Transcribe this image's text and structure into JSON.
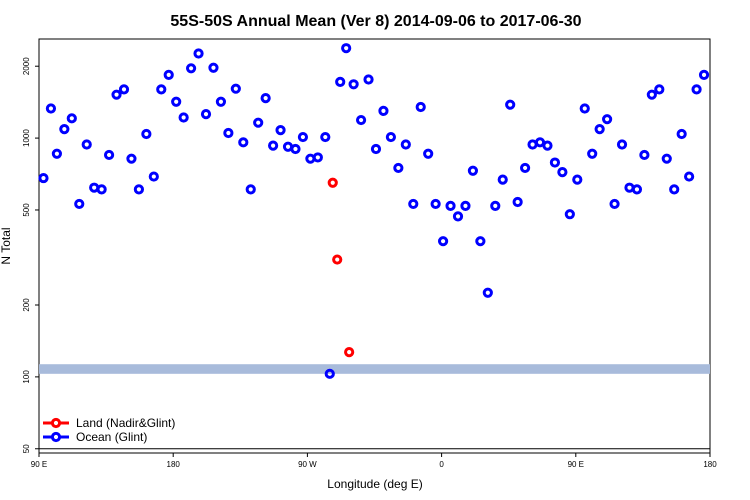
{
  "chart_data": {
    "type": "scatter",
    "title": "55S-50S Annual Mean (Ver 8)   2014-09-06 to 2017-06-30",
    "xlabel": "Longitude (deg E)",
    "ylabel": "N Total",
    "x_ticks": [
      {
        "value": 90,
        "label": "90 E"
      },
      {
        "value": 180,
        "label": "180"
      },
      {
        "value": 270,
        "label": "90 W"
      },
      {
        "value": 360,
        "label": "0"
      },
      {
        "value": 450,
        "label": "90 E"
      },
      {
        "value": 540,
        "label": "180"
      }
    ],
    "y_ticks": [
      {
        "value": 50,
        "label": "50"
      },
      {
        "value": 100,
        "label": "100"
      },
      {
        "value": 200,
        "label": "200"
      },
      {
        "value": 500,
        "label": "500"
      },
      {
        "value": 1000,
        "label": "1000"
      },
      {
        "value": 2000,
        "label": "2000"
      }
    ],
    "xlim": [
      90,
      540
    ],
    "ylim": [
      48,
      2600
    ],
    "y_scale": "log",
    "grid": false,
    "legend_position": "bottom-left",
    "band": {
      "y_low": 103,
      "y_high": 113,
      "color": "#a8bbdb"
    },
    "baseline_y": 50,
    "series": [
      {
        "name": "Land (Nadir&Glint)",
        "color": "#ff0000",
        "x": [
          287,
          290,
          298
        ],
        "y": [
          650,
          310,
          127
        ]
      },
      {
        "name": "Ocean (Glint)",
        "color": "#0000ff",
        "x": [
          93,
          98,
          102,
          107,
          112,
          117,
          122,
          127,
          132,
          137,
          142,
          147,
          152,
          157,
          162,
          167,
          172,
          177,
          182,
          187,
          192,
          197,
          202,
          207,
          212,
          217,
          222,
          227,
          232,
          237,
          242,
          247,
          252,
          257,
          262,
          267,
          272,
          277,
          282,
          285,
          292,
          296,
          301,
          306,
          311,
          316,
          321,
          326,
          331,
          336,
          341,
          346,
          351,
          356,
          361,
          366,
          371,
          376,
          381,
          386,
          391,
          396,
          401,
          406,
          411,
          416,
          421,
          426,
          431,
          436,
          441,
          446,
          451,
          456,
          461,
          466,
          471,
          476,
          481,
          486,
          491,
          496,
          501,
          506,
          511,
          516,
          521,
          526,
          531,
          536
        ],
        "y": [
          680,
          1330,
          860,
          1090,
          1210,
          530,
          940,
          620,
          610,
          850,
          1520,
          1600,
          820,
          610,
          1040,
          690,
          1600,
          1840,
          1420,
          1220,
          1960,
          2260,
          1260,
          1970,
          1420,
          1050,
          1610,
          960,
          610,
          1160,
          1470,
          930,
          1080,
          920,
          900,
          1010,
          820,
          830,
          1010,
          103,
          1720,
          2380,
          1680,
          1190,
          1760,
          900,
          1300,
          1010,
          750,
          940,
          530,
          1350,
          860,
          530,
          370,
          520,
          470,
          520,
          730,
          370,
          225,
          520,
          670,
          1380,
          540,
          750,
          940,
          960,
          930,
          790,
          720,
          480,
          670,
          1330,
          860,
          1090,
          1200,
          530,
          940,
          620,
          610,
          850,
          1520,
          1600,
          820,
          610,
          1040,
          690,
          1600,
          1840
        ]
      }
    ]
  }
}
